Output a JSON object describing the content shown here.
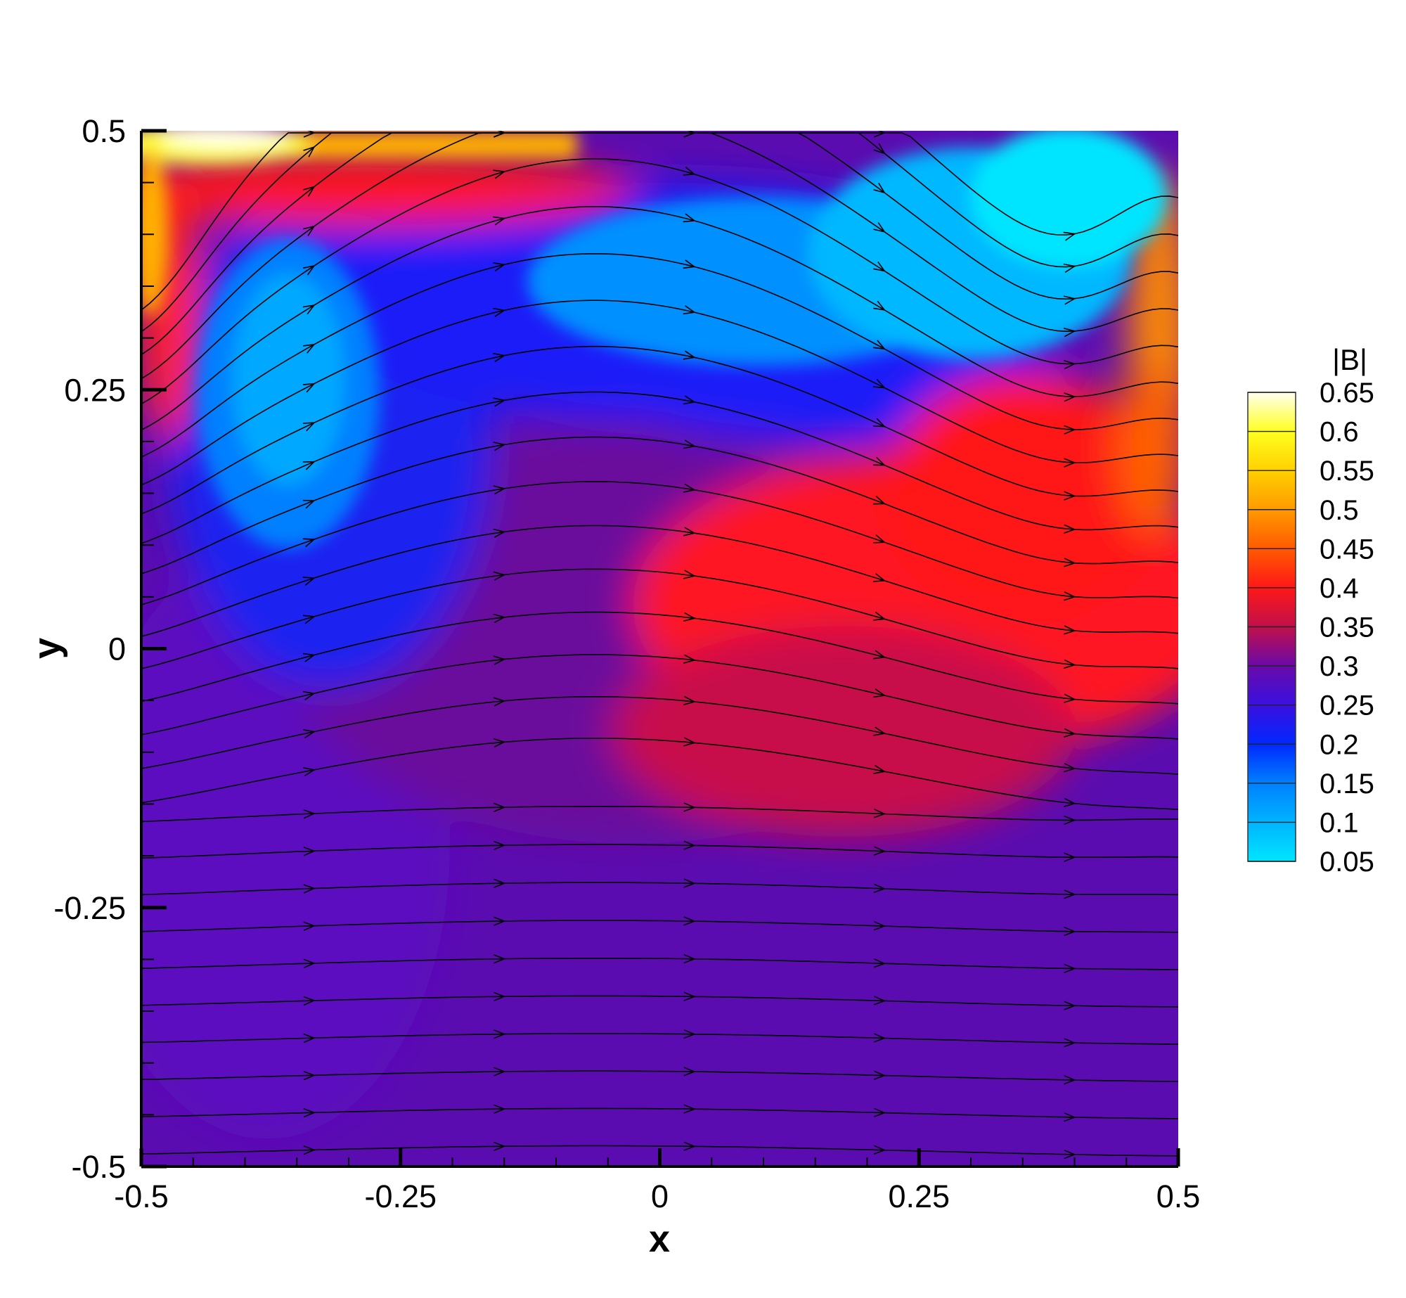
{
  "chart_data": {
    "type": "heatmap",
    "title": "",
    "xlabel": "x",
    "ylabel": "y",
    "xlim": [
      -0.5,
      0.5
    ],
    "ylim": [
      -0.5,
      0.5
    ],
    "x_ticks": [
      -0.5,
      -0.25,
      0,
      0.25,
      0.5
    ],
    "x_tick_labels": [
      "-0.5",
      "-0.25",
      "0",
      "0.25",
      "0.5"
    ],
    "y_ticks": [
      -0.5,
      -0.25,
      0,
      0.25,
      0.5
    ],
    "y_tick_labels": [
      "-0.5",
      "-0.25",
      "0",
      "0.25",
      "0.5"
    ],
    "colorbar": {
      "title": "|B|",
      "levels": [
        0.05,
        0.1,
        0.15,
        0.2,
        0.25,
        0.3,
        0.35,
        0.4,
        0.45,
        0.5,
        0.55,
        0.6,
        0.65
      ],
      "labels": [
        "0.05",
        "0.1",
        "0.15",
        "0.2",
        "0.25",
        "0.3",
        "0.35",
        "0.4",
        "0.45",
        "0.5",
        "0.55",
        "0.6",
        "0.65"
      ],
      "colors": [
        "#00e5ff",
        "#00b4ff",
        "#0080ff",
        "#0028ff",
        "#3a10e0",
        "#6a0aa8",
        "#c0104a",
        "#ff1818",
        "#ff5a00",
        "#ff9a00",
        "#ffd000",
        "#ffff20",
        "#fffff0"
      ]
    },
    "field_features": [
      {
        "name": "low-left-vortex",
        "x": -0.35,
        "y": 0.2,
        "value": 0.12
      },
      {
        "name": "low-upper-right",
        "x": 0.4,
        "y": 0.4,
        "value": 0.06
      },
      {
        "name": "high-lobe-right",
        "x": 0.28,
        "y": 0.05,
        "value": 0.4
      },
      {
        "name": "high-top-left-corner",
        "x": -0.45,
        "y": 0.49,
        "value": 0.65
      },
      {
        "name": "background-lower",
        "x": 0.0,
        "y": -0.35,
        "value": 0.27
      }
    ],
    "streamlines": true,
    "streamline_color": "#000000",
    "grid": false
  }
}
